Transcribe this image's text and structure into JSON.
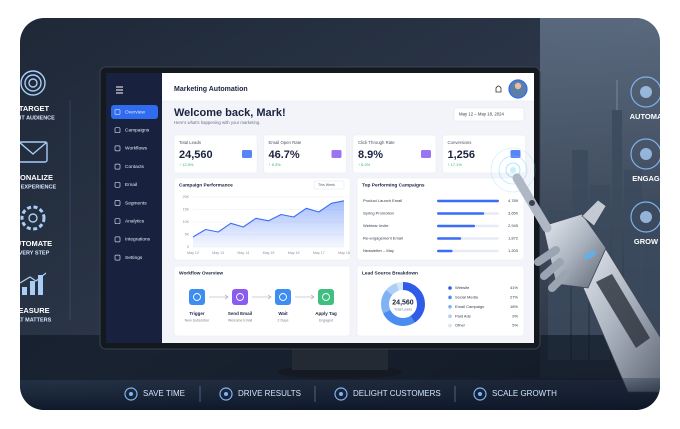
{
  "left_features": [
    {
      "title": "TARGET",
      "subtitle": "GHT AUDIENCE"
    },
    {
      "title": "SONALIZE",
      "subtitle": "RY EXPERIENCE"
    },
    {
      "title": "UTOMATE",
      "subtitle": "VERY STEP"
    },
    {
      "title": "EASURE",
      "subtitle": "AT MATTERS"
    }
  ],
  "right_features": [
    "AUTOMA",
    "ENGAG",
    "GROW"
  ],
  "dashboard": {
    "app_title": "Marketing Automation",
    "nav": [
      "Overview",
      "Campaigns",
      "Workflows",
      "Contacts",
      "Email",
      "Segments",
      "Analytics",
      "Integrations",
      "Settings"
    ],
    "welcome": "Welcome back, Mark!",
    "subtitle": "Here's what's happening with your marketing.",
    "date_range": "May 12 – May 18, 2024",
    "kpis": [
      {
        "label": "Total Leads",
        "value": "24,560",
        "change": "↑ 12.5%"
      },
      {
        "label": "Email Open Rate",
        "value": "46.7%",
        "change": "↑ 8.3%"
      },
      {
        "label": "Click Through Rate",
        "value": "8.9%",
        "change": "↑ 6.2%"
      },
      {
        "label": "Conversions",
        "value": "1,256",
        "change": "↑ 17.1%"
      }
    ],
    "campaign_performance": {
      "type": "line",
      "title": "Campaign Performance",
      "filter": "This Week",
      "categories": [
        "May 12",
        null,
        "May 13",
        null,
        "May 14",
        null,
        "May 15",
        null,
        "May 16",
        null,
        "May 17",
        null,
        "May 18"
      ],
      "values": [
        4000,
        7000,
        6000,
        9500,
        8000,
        11500,
        10500,
        13000,
        12000,
        15500,
        14000,
        17500,
        18500
      ],
      "color": "#3b6ef5",
      "ylim": [
        0,
        20000
      ],
      "yticks": [
        0,
        {
          "value": 5000,
          "label": "5K"
        },
        {
          "value": 10000,
          "label": "10K"
        },
        {
          "value": 15000,
          "label": "15K"
        },
        {
          "value": 20000,
          "label": "20K"
        }
      ],
      "grid": true
    },
    "top_campaigns": {
      "type": "bar",
      "title": "Top Performing Campaigns",
      "categories": [
        "Product Launch Email",
        "Spring Promotion",
        "Webinar Invite",
        "Re-engagement Email",
        "Newsletter – May"
      ],
      "values": [
        4789,
        3650,
        2945,
        1872,
        1203
      ],
      "value_labels": [
        "4,789",
        "3,650",
        "2,945",
        "1,872",
        "1,203"
      ],
      "color": "#3b6ef5"
    },
    "workflow": {
      "title": "Workflow Overview",
      "steps": [
        {
          "label": "Trigger",
          "detail": "New Subscriber"
        },
        {
          "label": "Send Email",
          "detail": "Welcome Email"
        },
        {
          "label": "Wait",
          "detail": "2 Days"
        },
        {
          "label": "Apply Tag",
          "detail": "Engaged"
        }
      ]
    },
    "lead_sources": {
      "type": "pie",
      "title": "Lead Source Breakdown",
      "center_value": "24,560",
      "center_label": "Total Leads",
      "categories": [
        "Website",
        "Social Media",
        "Email Campaign",
        "Paid Ads",
        "Other"
      ],
      "values": [
        41,
        27,
        18,
        9,
        5
      ],
      "value_labels": [
        "41%",
        "27%",
        "18%",
        "9%",
        "5%"
      ],
      "colors": [
        "#2f5be8",
        "#4a8df0",
        "#7fb3f5",
        "#aecdf7",
        "#d6e4f7"
      ]
    }
  },
  "benefits": [
    "SAVE TIME",
    "DRIVE RESULTS",
    "DELIGHT CUSTOMERS",
    "SCALE GROWTH"
  ]
}
